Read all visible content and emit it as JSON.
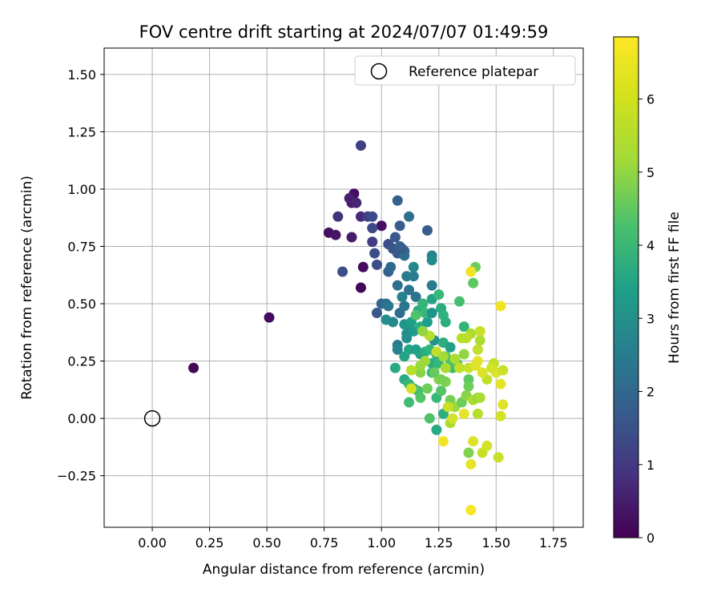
{
  "chart_data": {
    "type": "scatter",
    "title": "FOV centre drift starting at 2024/07/07 01:49:59",
    "xlabel": "Angular distance from reference (arcmin)",
    "ylabel": "Rotation from reference (arcmin)",
    "xlim": [
      -0.21,
      1.88
    ],
    "ylim": [
      -0.475,
      1.615
    ],
    "xticks": [
      "0.00",
      "0.25",
      "0.50",
      "0.75",
      "1.00",
      "1.25",
      "1.50",
      "1.75"
    ],
    "xtick_values": [
      0,
      0.25,
      0.5,
      0.75,
      1.0,
      1.25,
      1.5,
      1.75
    ],
    "yticks": [
      "−0.25",
      "0.00",
      "0.25",
      "0.50",
      "0.75",
      "1.00",
      "1.25",
      "1.50"
    ],
    "ytick_values": [
      -0.25,
      0,
      0.25,
      0.5,
      0.75,
      1.0,
      1.25,
      1.5
    ],
    "grid": true,
    "legend": {
      "position": "top-right",
      "label": "Reference platepar",
      "marker": "open-circle"
    },
    "reference_point": {
      "x": 0.0,
      "y": 0.0
    },
    "colorbar": {
      "label": "Hours from first FF file",
      "min": 0,
      "max": 6.85,
      "colormap": "viridis",
      "ticks": [
        "0",
        "1",
        "2",
        "3",
        "4",
        "5",
        "6"
      ],
      "tick_values": [
        0,
        1,
        2,
        3,
        4,
        5,
        6
      ]
    },
    "series": [
      {
        "points": [
          [
            0.18,
            0.22,
            0.1
          ],
          [
            0.51,
            0.44,
            0.2
          ],
          [
            0.77,
            0.81,
            0.3
          ],
          [
            0.8,
            0.8,
            0.4
          ],
          [
            0.87,
            0.79,
            0.5
          ],
          [
            0.88,
            0.98,
            0.3
          ],
          [
            0.87,
            0.94,
            0.5
          ],
          [
            0.86,
            0.96,
            0.6
          ],
          [
            0.89,
            0.94,
            0.7
          ],
          [
            0.81,
            0.88,
            1.0
          ],
          [
            0.91,
            0.88,
            0.8
          ],
          [
            0.94,
            0.88,
            1.3
          ],
          [
            0.96,
            0.88,
            1.5
          ],
          [
            1.0,
            0.84,
            0.3
          ],
          [
            0.92,
            0.66,
            0.2
          ],
          [
            0.91,
            0.57,
            0.1
          ],
          [
            0.83,
            0.64,
            1.6
          ],
          [
            0.91,
            1.19,
            1.3
          ],
          [
            0.96,
            0.77,
            1.2
          ],
          [
            0.97,
            0.72,
            1.6
          ],
          [
            0.96,
            0.83,
            1.5
          ],
          [
            0.98,
            0.67,
            1.6
          ],
          [
            1.03,
            0.76,
            1.6
          ],
          [
            1.05,
            0.74,
            1.8
          ],
          [
            1.06,
            0.79,
            1.9
          ],
          [
            1.07,
            0.72,
            1.9
          ],
          [
            1.08,
            0.84,
            2.0
          ],
          [
            1.08,
            0.75,
            2.1
          ],
          [
            1.07,
            0.95,
            2.1
          ],
          [
            1.12,
            0.88,
            2.5
          ],
          [
            1.2,
            0.82,
            2.0
          ],
          [
            1.1,
            0.73,
            2.2
          ],
          [
            1.03,
            0.64,
            2.1
          ],
          [
            1.04,
            0.66,
            2.3
          ],
          [
            1.1,
            0.71,
            2.5
          ],
          [
            1.09,
            0.74,
            2.0
          ],
          [
            0.98,
            0.46,
            1.9
          ],
          [
            1.0,
            0.5,
            2.2
          ],
          [
            1.02,
            0.5,
            2.5
          ],
          [
            1.03,
            0.49,
            2.7
          ],
          [
            1.07,
            0.58,
            2.5
          ],
          [
            1.08,
            0.46,
            2.4
          ],
          [
            1.11,
            0.62,
            2.8
          ],
          [
            1.12,
            0.56,
            2.6
          ],
          [
            1.14,
            0.62,
            2.9
          ],
          [
            1.14,
            0.66,
            3.2
          ],
          [
            1.15,
            0.53,
            2.6
          ],
          [
            1.1,
            0.49,
            2.7
          ],
          [
            1.09,
            0.53,
            3.0
          ],
          [
            1.22,
            0.71,
            3.1
          ],
          [
            1.22,
            0.69,
            3.3
          ],
          [
            1.22,
            0.58,
            2.8
          ],
          [
            1.02,
            0.43,
            3.4
          ],
          [
            1.05,
            0.42,
            3.2
          ],
          [
            1.07,
            0.32,
            2.8
          ],
          [
            1.07,
            0.3,
            3.1
          ],
          [
            1.1,
            0.41,
            3.6
          ],
          [
            1.11,
            0.37,
            3.4
          ],
          [
            1.12,
            0.4,
            3.5
          ],
          [
            1.11,
            0.35,
            3.4
          ],
          [
            1.13,
            0.42,
            3.8
          ],
          [
            1.14,
            0.38,
            3.7
          ],
          [
            1.16,
            0.47,
            4.2
          ],
          [
            1.17,
            0.4,
            4.3
          ],
          [
            1.18,
            0.5,
            4.5
          ],
          [
            1.2,
            0.42,
            3.8
          ],
          [
            1.19,
            0.46,
            4.6
          ],
          [
            1.22,
            0.52,
            4.0
          ],
          [
            1.22,
            0.46,
            3.5
          ],
          [
            1.23,
            0.34,
            3.5
          ],
          [
            1.25,
            0.54,
            4.6
          ],
          [
            1.26,
            0.48,
            4.2
          ],
          [
            1.27,
            0.45,
            4.4
          ],
          [
            1.28,
            0.42,
            4.3
          ],
          [
            1.06,
            0.22,
            4.1
          ],
          [
            1.1,
            0.27,
            4.0
          ],
          [
            1.12,
            0.3,
            4.0
          ],
          [
            1.15,
            0.3,
            3.8
          ],
          [
            1.17,
            0.28,
            3.9
          ],
          [
            1.19,
            0.29,
            4.2
          ],
          [
            1.21,
            0.3,
            4.5
          ],
          [
            1.22,
            0.24,
            4.3
          ],
          [
            1.24,
            0.28,
            4.0
          ],
          [
            1.25,
            0.24,
            4.6
          ],
          [
            1.27,
            0.33,
            4.3
          ],
          [
            1.28,
            0.27,
            5.0
          ],
          [
            1.3,
            0.25,
            4.8
          ],
          [
            1.31,
            0.22,
            4.7
          ],
          [
            1.33,
            0.24,
            5.0
          ],
          [
            1.3,
            0.31,
            3.9
          ],
          [
            1.34,
            0.51,
            4.8
          ],
          [
            1.36,
            0.4,
            4.5
          ],
          [
            1.38,
            0.17,
            5.1
          ],
          [
            1.1,
            0.17,
            4.2
          ],
          [
            1.12,
            0.15,
            4.6
          ],
          [
            1.14,
            0.13,
            4.3
          ],
          [
            1.16,
            0.12,
            4.8
          ],
          [
            1.17,
            0.09,
            5.0
          ],
          [
            1.2,
            0.13,
            5.3
          ],
          [
            1.22,
            0.2,
            4.5
          ],
          [
            1.24,
            0.09,
            4.6
          ],
          [
            1.26,
            0.12,
            5.0
          ],
          [
            1.12,
            0.07,
            4.7
          ],
          [
            1.21,
            0.0,
            4.9
          ],
          [
            1.24,
            -0.05,
            4.1
          ],
          [
            1.27,
            0.02,
            4.3
          ],
          [
            1.3,
            0.08,
            5.4
          ],
          [
            1.32,
            0.05,
            5.8
          ],
          [
            1.35,
            0.07,
            5.3
          ],
          [
            1.37,
            0.1,
            5.6
          ],
          [
            1.4,
            0.59,
            5.1
          ],
          [
            1.41,
            0.66,
            5.3
          ],
          [
            1.39,
            0.64,
            6.7
          ],
          [
            1.38,
            0.14,
            5.3
          ],
          [
            1.4,
            0.08,
            6.0
          ],
          [
            1.42,
            0.09,
            5.7
          ],
          [
            1.43,
            0.09,
            6.0
          ],
          [
            1.38,
            -0.15,
            5.5
          ],
          [
            1.29,
            0.05,
            6.3
          ],
          [
            1.3,
            -0.02,
            6.0
          ],
          [
            1.31,
            0.0,
            6.4
          ],
          [
            1.27,
            -0.1,
            6.7
          ],
          [
            1.36,
            0.02,
            6.6
          ],
          [
            1.39,
            -0.2,
            6.6
          ],
          [
            1.4,
            -0.1,
            6.5
          ],
          [
            1.42,
            0.02,
            6.1
          ],
          [
            1.44,
            -0.15,
            6.3
          ],
          [
            1.46,
            -0.12,
            6.4
          ],
          [
            1.39,
            -0.4,
            6.8
          ],
          [
            1.51,
            -0.17,
            6.3
          ],
          [
            1.52,
            0.01,
            6.4
          ],
          [
            1.53,
            0.06,
            6.5
          ],
          [
            1.52,
            0.15,
            6.6
          ],
          [
            1.5,
            0.2,
            6.5
          ],
          [
            1.49,
            0.24,
            6.2
          ],
          [
            1.53,
            0.21,
            6.3
          ],
          [
            1.48,
            0.22,
            6.4
          ],
          [
            1.46,
            0.17,
            6.2
          ],
          [
            1.44,
            0.2,
            6.5
          ],
          [
            1.42,
            0.25,
            6.6
          ],
          [
            1.42,
            0.3,
            6.2
          ],
          [
            1.43,
            0.34,
            6.0
          ],
          [
            1.43,
            0.38,
            6.3
          ],
          [
            1.39,
            0.37,
            6.0
          ],
          [
            1.37,
            0.35,
            6.2
          ],
          [
            1.35,
            0.35,
            6.1
          ],
          [
            1.52,
            0.49,
            6.7
          ],
          [
            1.28,
            0.22,
            6.0
          ],
          [
            1.24,
            0.29,
            6.2
          ],
          [
            1.21,
            0.36,
            6.1
          ],
          [
            1.19,
            0.25,
            5.9
          ],
          [
            1.17,
            0.2,
            5.6
          ],
          [
            1.17,
            0.23,
            5.8
          ],
          [
            1.13,
            0.21,
            6.1
          ],
          [
            1.18,
            0.38,
            5.7
          ],
          [
            1.27,
            0.27,
            5.9
          ],
          [
            1.32,
            0.26,
            6.0
          ],
          [
            1.34,
            0.22,
            6.2
          ],
          [
            1.36,
            0.28,
            5.7
          ],
          [
            1.38,
            0.22,
            6.3
          ],
          [
            1.41,
            0.23,
            6.5
          ],
          [
            1.25,
            0.17,
            5.7
          ],
          [
            1.28,
            0.16,
            5.5
          ],
          [
            1.13,
            0.13,
            6.4
          ],
          [
            1.15,
            0.45,
            4.9
          ],
          [
            1.23,
            0.2,
            5.2
          ],
          [
            1.26,
            0.17,
            5.4
          ]
        ]
      }
    ]
  }
}
